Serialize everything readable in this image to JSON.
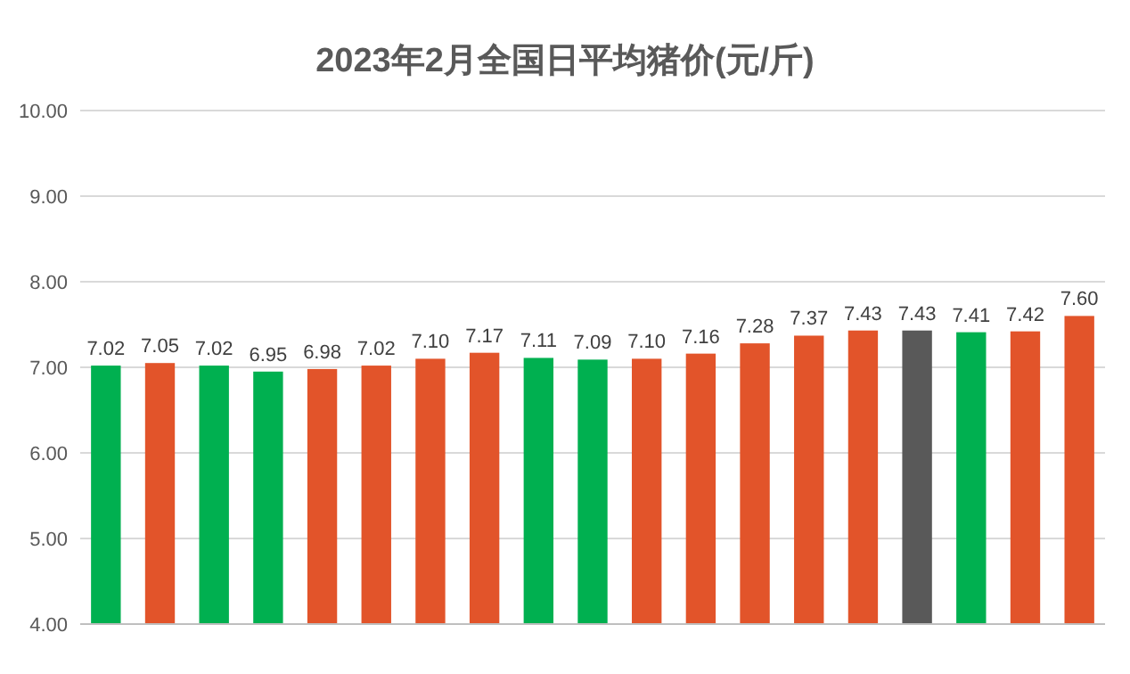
{
  "chart_data": {
    "type": "bar",
    "title": "2023年2月全国日平均猪价(元/斤)",
    "categories": [
      null,
      null,
      null,
      null,
      null,
      null,
      null,
      null,
      null,
      null,
      null,
      null,
      null,
      null,
      null,
      null,
      null,
      null,
      null
    ],
    "values": [
      7.02,
      7.05,
      7.02,
      6.95,
      6.98,
      7.02,
      7.1,
      7.17,
      7.11,
      7.09,
      7.1,
      7.16,
      7.28,
      7.37,
      7.43,
      7.43,
      7.41,
      7.42,
      7.6
    ],
    "colors": [
      "#00b050",
      "#e2542a",
      "#00b050",
      "#00b050",
      "#e2542a",
      "#e2542a",
      "#e2542a",
      "#e2542a",
      "#00b050",
      "#00b050",
      "#e2542a",
      "#e2542a",
      "#e2542a",
      "#e2542a",
      "#e2542a",
      "#595959",
      "#00b050",
      "#e2542a",
      "#e2542a"
    ],
    "value_labels": [
      "7.02",
      "7.05",
      "7.02",
      "6.95",
      "6.98",
      "7.02",
      "7.10",
      "7.17",
      "7.11",
      "7.09",
      "7.10",
      "7.16",
      "7.28",
      "7.37",
      "7.43",
      "7.43",
      "7.41",
      "7.42",
      "7.60"
    ],
    "ylim": [
      4,
      10
    ],
    "yticks": [
      {
        "value": 4,
        "label": "4.00"
      },
      {
        "value": 5,
        "label": "5.00"
      },
      {
        "value": 6,
        "label": "6.00"
      },
      {
        "value": 7,
        "label": "7.00"
      },
      {
        "value": 8,
        "label": "8.00"
      },
      {
        "value": 9,
        "label": "9.00"
      },
      {
        "value": 10,
        "label": "10.00"
      }
    ],
    "grid": true
  }
}
